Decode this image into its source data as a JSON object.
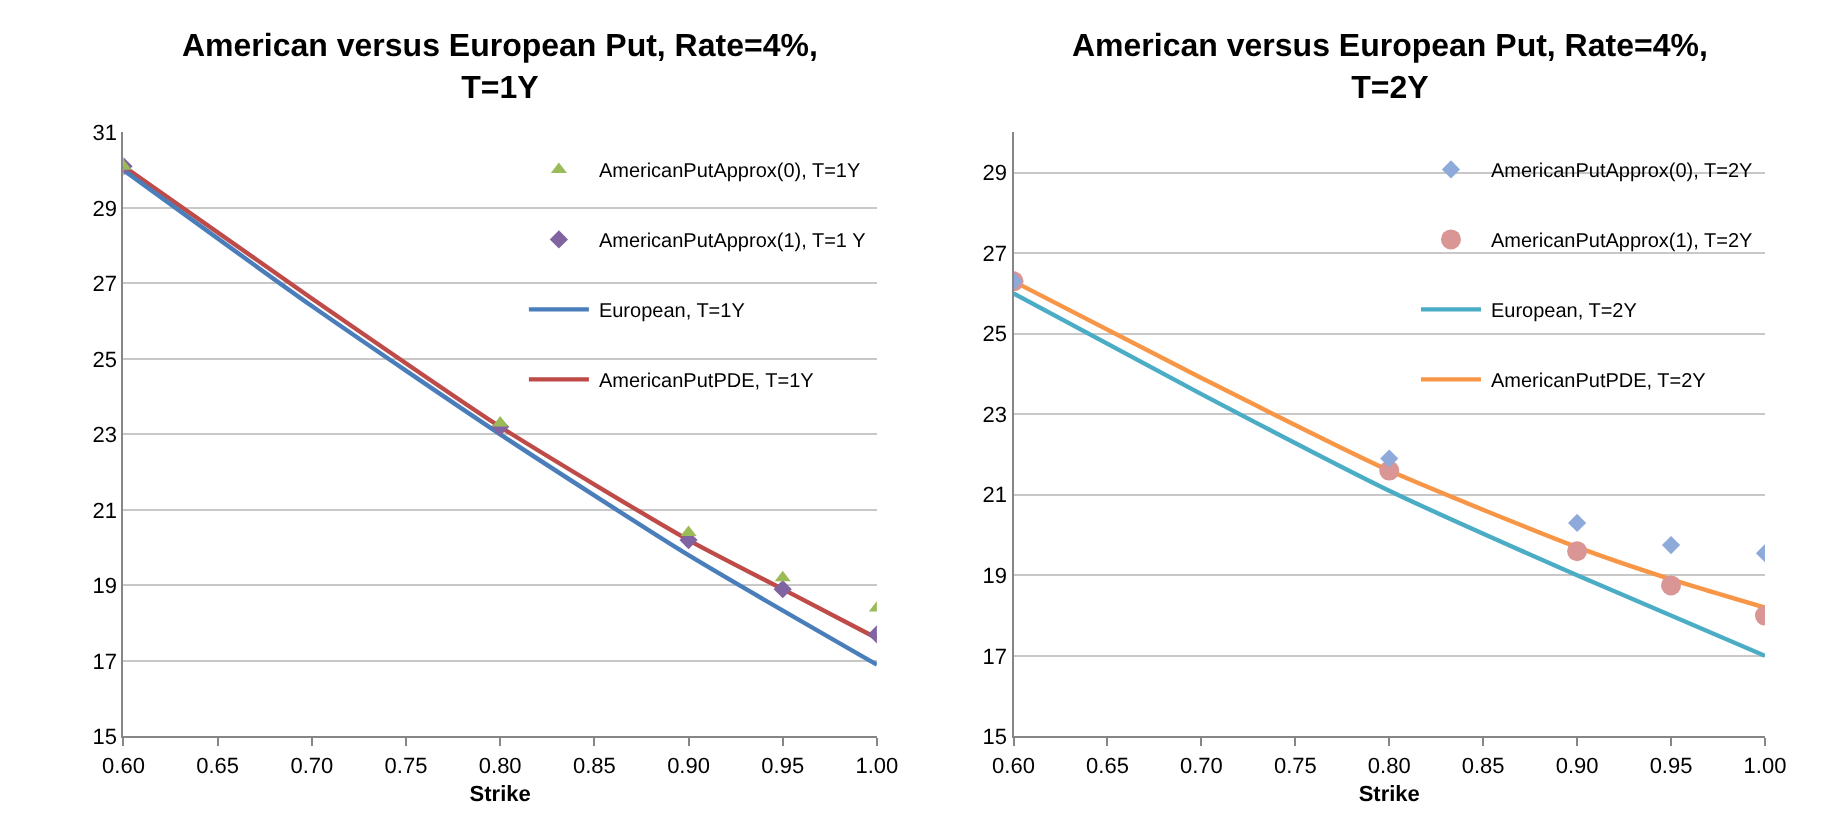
{
  "chart_data": [
    {
      "type": "line",
      "title": "American versus European Put, Rate=4%, T=1Y",
      "xlabel": "Strike",
      "xlim": [
        0.6,
        1.0
      ],
      "xticks": [
        {
          "value": 0.6,
          "label": "0.60"
        },
        {
          "value": 0.65,
          "label": "0.65"
        },
        {
          "value": 0.7,
          "label": "0.70"
        },
        {
          "value": 0.75,
          "label": "0.75"
        },
        {
          "value": 0.8,
          "label": "0.80"
        },
        {
          "value": 0.85,
          "label": "0.85"
        },
        {
          "value": 0.9,
          "label": "0.90"
        },
        {
          "value": 0.95,
          "label": "0.95"
        },
        {
          "value": 1.0,
          "label": "1.00"
        }
      ],
      "ylim": [
        15,
        31
      ],
      "yticks": [
        15,
        17,
        19,
        21,
        23,
        25,
        27,
        29,
        31
      ],
      "grid": "y",
      "legend": "top right",
      "series": [
        {
          "name": "AmericanPutApprox(0), T=1Y",
          "type": "scatter",
          "marker": "triangle",
          "color": "#9bbb59",
          "x": [
            0.6,
            0.8,
            0.9,
            0.95,
            1.0
          ],
          "values": [
            30.1,
            23.3,
            20.4,
            19.2,
            18.4
          ]
        },
        {
          "name": "AmericanPutApprox(1), T=1 Y",
          "type": "scatter",
          "marker": "diamond",
          "color": "#8064a2",
          "x": [
            0.6,
            0.8,
            0.9,
            0.95,
            1.0
          ],
          "values": [
            30.1,
            23.2,
            20.2,
            18.9,
            17.7
          ]
        },
        {
          "name": "European, T=1Y",
          "color": "#4a7ebb",
          "x": [
            0.6,
            0.7,
            0.8,
            0.9,
            1.0
          ],
          "values": [
            30.0,
            26.4,
            23.0,
            19.8,
            16.9
          ]
        },
        {
          "name": "AmericanPutPDE, T=1Y",
          "color": "#be4b48",
          "x": [
            0.6,
            0.7,
            0.8,
            0.9,
            0.95,
            1.0
          ],
          "values": [
            30.1,
            26.6,
            23.2,
            20.2,
            18.9,
            17.6
          ]
        }
      ]
    },
    {
      "type": "line",
      "title": "American versus European Put, Rate=4%, T=2Y",
      "xlabel": "Strike",
      "xlim": [
        0.6,
        1.0
      ],
      "xticks": [
        {
          "value": 0.6,
          "label": "0.60"
        },
        {
          "value": 0.65,
          "label": "0.65"
        },
        {
          "value": 0.7,
          "label": "0.70"
        },
        {
          "value": 0.75,
          "label": "0.75"
        },
        {
          "value": 0.8,
          "label": "0.80"
        },
        {
          "value": 0.85,
          "label": "0.85"
        },
        {
          "value": 0.9,
          "label": "0.90"
        },
        {
          "value": 0.95,
          "label": "0.95"
        },
        {
          "value": 1.0,
          "label": "1.00"
        }
      ],
      "ylim": [
        15,
        30
      ],
      "yticks": [
        15,
        17,
        19,
        21,
        23,
        25,
        27,
        29
      ],
      "grid": "y",
      "legend": "top right",
      "series": [
        {
          "name": "AmericanPutApprox(0), T=2Y",
          "type": "scatter",
          "marker": "diamond",
          "color": "#8eaadb",
          "x": [
            0.6,
            0.8,
            0.9,
            0.95,
            1.0
          ],
          "values": [
            26.3,
            21.9,
            20.3,
            19.75,
            19.55
          ]
        },
        {
          "name": "AmericanPutApprox(1), T=2Y",
          "type": "scatter",
          "marker": "circle",
          "color": "#d99694",
          "x": [
            0.6,
            0.8,
            0.9,
            0.95,
            1.0
          ],
          "values": [
            26.3,
            21.6,
            19.6,
            18.75,
            18.0
          ]
        },
        {
          "name": "European, T=2Y",
          "color": "#4bacc6",
          "x": [
            0.6,
            0.7,
            0.8,
            0.9,
            1.0
          ],
          "values": [
            26.0,
            23.5,
            21.1,
            19.0,
            17.0
          ]
        },
        {
          "name": "AmericanPutPDE, T=2Y",
          "color": "#f79646",
          "x": [
            0.6,
            0.7,
            0.8,
            0.9,
            0.95,
            1.0
          ],
          "values": [
            26.3,
            23.9,
            21.6,
            19.7,
            18.9,
            18.2
          ]
        }
      ]
    }
  ]
}
